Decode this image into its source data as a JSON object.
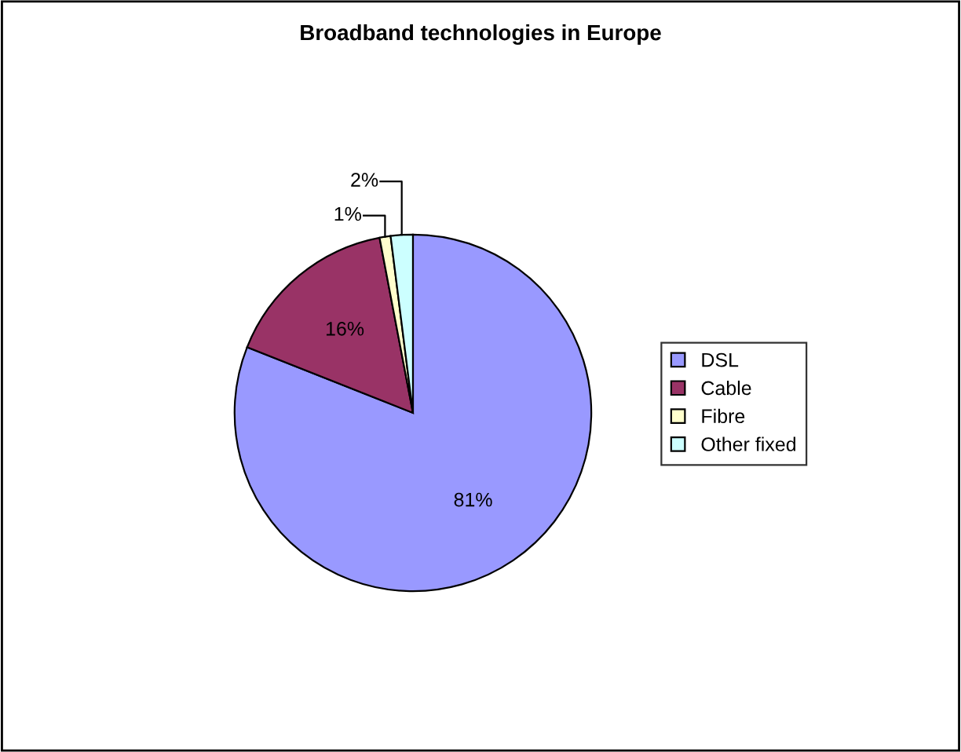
{
  "chart_data": {
    "type": "pie",
    "title": "Broadband technologies in Europe",
    "categories": [
      "DSL",
      "Cable",
      "Fibre",
      "Other fixed"
    ],
    "values": [
      81,
      16,
      1,
      2
    ],
    "colors": [
      "#9999ff",
      "#993366",
      "#ffffcc",
      "#ccffff"
    ],
    "value_labels": [
      "81%",
      "16%",
      "1%",
      "2%"
    ],
    "legend": "right"
  }
}
